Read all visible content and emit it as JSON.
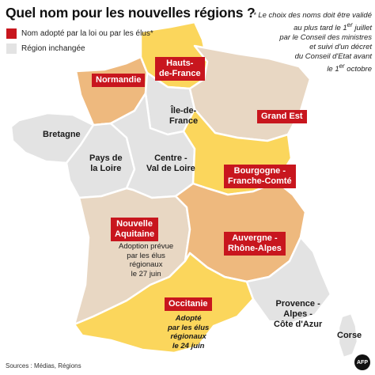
{
  "title": "Quel nom pour les nouvelles régions ?",
  "legend": {
    "adopted": "Nom adopté par la loi ou par les élus*",
    "unchanged": "Région inchangée",
    "adopted_color": "#c8161e",
    "unchanged_color": "#e3e3e3"
  },
  "note": [
    "* Le choix des noms doit être validé",
    "au plus tard le 1",
    " juillet",
    "par le Conseil des ministres",
    "et suivi d'un  décret",
    "du Conseil d'Etat avant",
    "le 1",
    " octobre"
  ],
  "note_sup": "er",
  "regions": {
    "hauts_de_france": [
      "Hauts-",
      "de-France"
    ],
    "normandie": "Normandie",
    "ile_de_france": [
      "Île-de-",
      "France"
    ],
    "grand_est": "Grand Est",
    "bretagne": "Bretagne",
    "pays_de_la_loire": [
      "Pays de",
      "la Loire"
    ],
    "centre_val_de_loire": [
      "Centre -",
      "Val de Loire"
    ],
    "bourgogne_franche_comte": [
      "Bourgogne -",
      "Franche-Comté"
    ],
    "nouvelle_aquitaine": [
      "Nouvelle",
      "Aquitaine"
    ],
    "auvergne_rhone_alpes": [
      "Auvergne -",
      "Rhône-Alpes"
    ],
    "occitanie": "Occitanie",
    "paca": [
      "Provence -",
      "Alpes -",
      "Côte d'Azur"
    ],
    "corse": "Corse"
  },
  "annotations": {
    "nouvelle_aquitaine": [
      "Adoption prévue",
      "par les élus",
      "régionaux",
      "le 27 juin"
    ],
    "occitanie": [
      "Adopté",
      "par les élus",
      "régionaux",
      "le 24 juin"
    ]
  },
  "colors": {
    "label_red": "#c8161e",
    "yellow": "#fbd65c",
    "orange": "#eeb97e",
    "beige": "#e8d7c3",
    "grey": "#e3e3e3"
  },
  "sources": "Sources : Médias, Régions",
  "logo": "AFP"
}
